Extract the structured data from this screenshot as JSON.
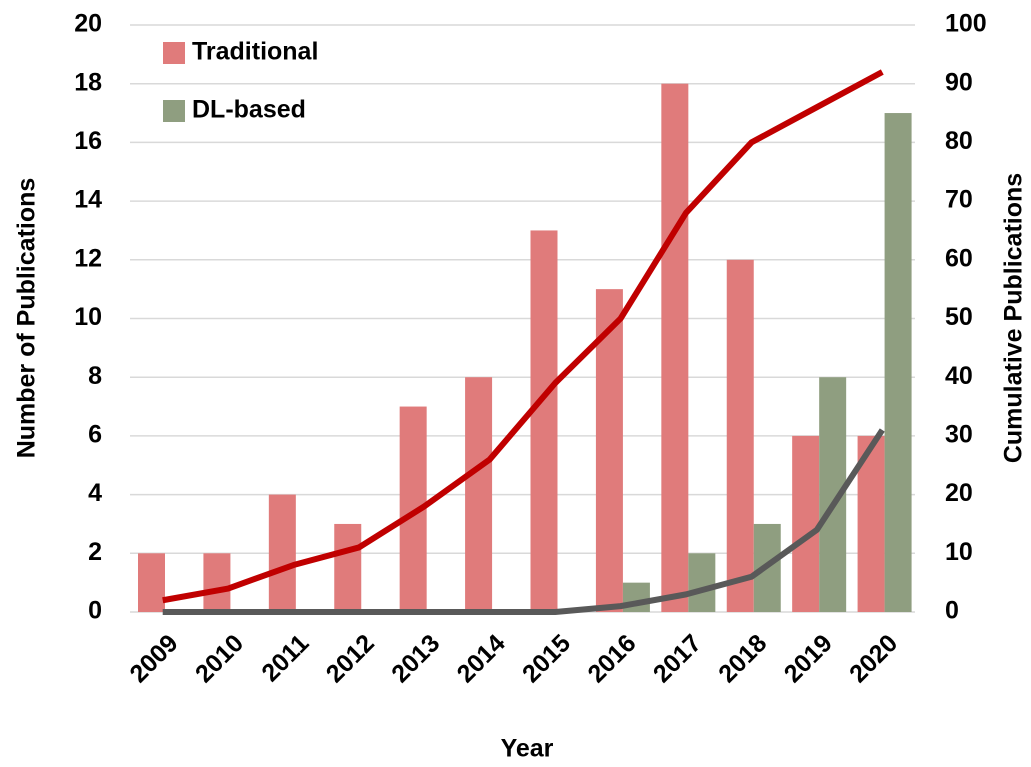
{
  "chart_data": {
    "type": "bar",
    "xlabel": "Year",
    "ylabel": "Number of Publications",
    "y2label": "Cumulative Publications",
    "categories": [
      "2009",
      "2010",
      "2011",
      "2012",
      "2013",
      "2014",
      "2015",
      "2016",
      "2017",
      "2018",
      "2019",
      "2020"
    ],
    "series": [
      {
        "name": "Traditional",
        "color": "#e07b7b",
        "values": [
          2,
          2,
          4,
          3,
          7,
          8,
          13,
          11,
          18,
          12,
          6,
          6
        ]
      },
      {
        "name": "DL-based",
        "color": "#8f9e80",
        "values": [
          0,
          0,
          0,
          0,
          0,
          0,
          0,
          1,
          2,
          3,
          8,
          17
        ]
      },
      {
        "type": "line",
        "axis": "y2",
        "color": "#c00000",
        "values": [
          2,
          4,
          8,
          11,
          18,
          26,
          39,
          50,
          68,
          80,
          86,
          92
        ]
      },
      {
        "type": "line",
        "axis": "y2",
        "color": "#595959",
        "values": [
          0,
          0,
          0,
          0,
          0,
          0,
          0,
          1,
          3,
          6,
          14,
          31
        ]
      }
    ],
    "ylim": [
      0,
      20
    ],
    "yticks": [
      0,
      2,
      4,
      6,
      8,
      10,
      12,
      14,
      16,
      18,
      20
    ],
    "y2lim": [
      0,
      100
    ],
    "y2ticks": [
      0,
      10,
      20,
      30,
      40,
      50,
      60,
      70,
      80,
      90,
      100
    ],
    "grid": true,
    "legend": "upper left"
  }
}
